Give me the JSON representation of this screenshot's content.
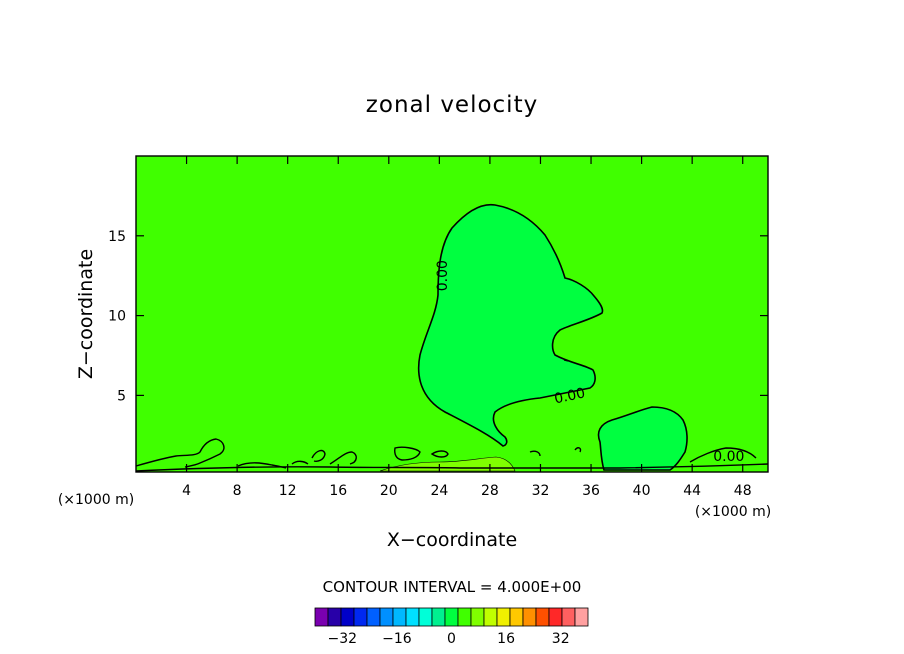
{
  "chart_data": {
    "type": "contour",
    "title": "zonal velocity",
    "xlabel": "X−coordinate",
    "ylabel": "Z−coordinate",
    "x_units": "(×1000 m)",
    "xlim": [
      0,
      50
    ],
    "ylim": [
      0.2,
      20
    ],
    "x_ticks": [
      4,
      8,
      12,
      16,
      20,
      24,
      28,
      32,
      36,
      40,
      44,
      48
    ],
    "y_ticks": [
      5,
      10,
      15
    ],
    "contour_labels": [
      {
        "text": "0.00",
        "x": 24.2,
        "z": 12.5,
        "rotation": -90
      },
      {
        "text": "0.00",
        "x": 34.3,
        "z": 5.0,
        "rotation": -12
      },
      {
        "text": "0.00",
        "x": 46.9,
        "z": 1.2,
        "rotation": 0
      }
    ],
    "background_level": 0,
    "contour_interval_label": "CONTOUR INTERVAL = 4.000E+00",
    "colorbar": {
      "levels": [
        -40,
        -36,
        -32,
        -28,
        -24,
        -20,
        -16,
        -12,
        -8,
        -4,
        0,
        4,
        8,
        12,
        16,
        20,
        24,
        28,
        32,
        36,
        40
      ],
      "tick_values": [
        -32,
        -16,
        0,
        16,
        32
      ],
      "tick_labels": [
        "−32",
        "−16",
        "0",
        "16",
        "32"
      ],
      "colors": [
        "#7a00b0",
        "#2800a8",
        "#0000c8",
        "#0028f0",
        "#0060ff",
        "#0090ff",
        "#00b8ff",
        "#00e0ff",
        "#00ffd8",
        "#00f090",
        "#00ff40",
        "#40ff00",
        "#80ff00",
        "#c0ff00",
        "#f0f000",
        "#ffc800",
        "#ff9000",
        "#ff5000",
        "#ff2828",
        "#ff6060",
        "#ffa0a0"
      ]
    },
    "field_colors": {
      "background": "#40ff00",
      "positive_region": "#00ff40",
      "near_surface_positive": "#80ff00"
    }
  }
}
